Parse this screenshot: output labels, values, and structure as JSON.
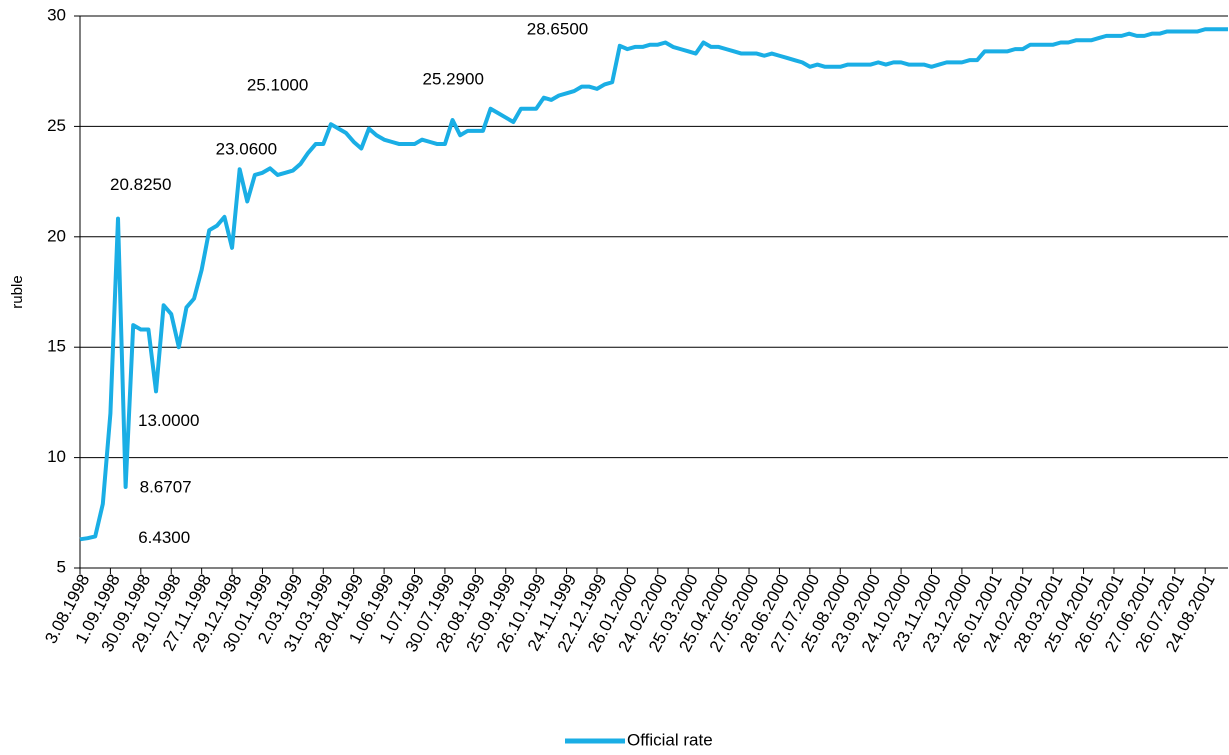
{
  "chart_data": {
    "type": "line",
    "ylabel": "ruble",
    "ylim": [
      5,
      30
    ],
    "yticks": [
      5,
      10,
      15,
      20,
      25,
      30
    ],
    "grid": true,
    "categories": [
      "3.08.1998",
      null,
      null,
      null,
      "1.09.1998",
      null,
      null,
      null,
      "30.09.1998",
      null,
      null,
      null,
      "29.10.1998",
      null,
      null,
      null,
      "27.11.1998",
      null,
      null,
      null,
      "29.12.1998",
      null,
      null,
      null,
      "30.01.1999",
      null,
      null,
      null,
      "2.03.1999",
      null,
      null,
      null,
      "31.03.1999",
      null,
      null,
      null,
      "28.04.1999",
      null,
      null,
      null,
      "1.06.1999",
      null,
      null,
      null,
      "1.07.1999",
      null,
      null,
      null,
      "30.07.1999",
      null,
      null,
      null,
      "28.08.1999",
      null,
      null,
      null,
      "25.09.1999",
      null,
      null,
      null,
      "26.10.1999",
      null,
      null,
      null,
      "24.11.1999",
      null,
      null,
      null,
      "22.12.1999",
      null,
      null,
      null,
      "26.01.2000",
      null,
      null,
      null,
      "24.02.2000",
      null,
      null,
      null,
      "25.03.2000",
      null,
      null,
      null,
      "25.04.2000",
      null,
      null,
      null,
      "27.05.2000",
      null,
      null,
      null,
      "28.06.2000",
      null,
      null,
      null,
      "27.07.2000",
      null,
      null,
      null,
      "25.08.2000",
      null,
      null,
      null,
      "23.09.2000",
      null,
      null,
      null,
      "24.10.2000",
      null,
      null,
      null,
      "23.11.2000",
      null,
      null,
      null,
      "23.12.2000",
      null,
      null,
      null,
      "26.01.2001",
      null,
      null,
      null,
      "24.02.2001",
      null,
      null,
      null,
      "28.03.2001",
      null,
      null,
      null,
      "25.04.2001",
      null,
      null,
      null,
      "26.05.2001",
      null,
      null,
      null,
      "27.06.2001",
      null,
      null,
      null,
      "26.07.2001",
      null,
      null,
      null,
      "24.08.2001",
      null,
      null,
      null
    ],
    "series": [
      {
        "name": "Official rate",
        "color": "#1aaee5",
        "values": [
          6.3,
          6.35,
          6.43,
          7.9,
          12.0,
          20.825,
          8.6707,
          16.0,
          15.8,
          15.8,
          13.0,
          16.9,
          16.5,
          15.0,
          16.8,
          17.2,
          18.5,
          20.3,
          20.5,
          20.9,
          19.5,
          23.06,
          21.6,
          22.8,
          22.9,
          23.1,
          22.8,
          22.9,
          23.0,
          23.3,
          23.8,
          24.2,
          24.2,
          25.1,
          24.9,
          24.7,
          24.3,
          24.0,
          24.9,
          24.6,
          24.4,
          24.3,
          24.2,
          24.2,
          24.2,
          24.4,
          24.3,
          24.2,
          24.2,
          25.29,
          24.6,
          24.8,
          24.8,
          24.8,
          25.8,
          25.6,
          25.4,
          25.2,
          25.8,
          25.8,
          25.8,
          26.3,
          26.2,
          26.4,
          26.5,
          26.6,
          26.8,
          26.8,
          26.7,
          26.9,
          27.0,
          28.65,
          28.5,
          28.6,
          28.6,
          28.7,
          28.7,
          28.8,
          28.6,
          28.5,
          28.4,
          28.3,
          28.8,
          28.6,
          28.6,
          28.5,
          28.4,
          28.3,
          28.3,
          28.3,
          28.2,
          28.3,
          28.2,
          28.1,
          28.0,
          27.9,
          27.7,
          27.8,
          27.7,
          27.7,
          27.7,
          27.8,
          27.8,
          27.8,
          27.8,
          27.9,
          27.8,
          27.9,
          27.9,
          27.8,
          27.8,
          27.8,
          27.7,
          27.8,
          27.9,
          27.9,
          27.9,
          28.0,
          28.0,
          28.4,
          28.4,
          28.4,
          28.4,
          28.5,
          28.5,
          28.7,
          28.7,
          28.7,
          28.7,
          28.8,
          28.8,
          28.9,
          28.9,
          28.9,
          29.0,
          29.1,
          29.1,
          29.1,
          29.2,
          29.1,
          29.1,
          29.2,
          29.2,
          29.3,
          29.3,
          29.3,
          29.3,
          29.3,
          29.4,
          29.4,
          29.4,
          29.4
        ],
        "value_labels": [
          null,
          null,
          "6.4300",
          null,
          null,
          "20.8250",
          "8.6707",
          null,
          null,
          null,
          "13.0000",
          null,
          null,
          null,
          null,
          null,
          null,
          null,
          null,
          null,
          null,
          "23.0600",
          null,
          null,
          null,
          null,
          null,
          null,
          null,
          null,
          null,
          null,
          null,
          "25.1000",
          null,
          null,
          null,
          null,
          null,
          null,
          null,
          null,
          null,
          null,
          null,
          null,
          null,
          null,
          null,
          "25.2900",
          null,
          null,
          null,
          null,
          null,
          null,
          null,
          null,
          null,
          null,
          null,
          null,
          null,
          null,
          null,
          null,
          null,
          null,
          null,
          null,
          null,
          "28.6500",
          null,
          null,
          null,
          null,
          null,
          null,
          null,
          null,
          null,
          null,
          null,
          null,
          null,
          null,
          null,
          null,
          null,
          null,
          null,
          null,
          null,
          null,
          null,
          null,
          null,
          null,
          null,
          null,
          null,
          null,
          null,
          null,
          null,
          null,
          null,
          null,
          null,
          null,
          null,
          null,
          null,
          null,
          null,
          null,
          null,
          null,
          null,
          null,
          null,
          null,
          null,
          null,
          null,
          null,
          null,
          null,
          null,
          null,
          null,
          null,
          null,
          null,
          null,
          null,
          null,
          null,
          null,
          null,
          null,
          null,
          null,
          null,
          null,
          null,
          null,
          null,
          null,
          null,
          null,
          null
        ]
      }
    ],
    "legend": "bottom"
  }
}
